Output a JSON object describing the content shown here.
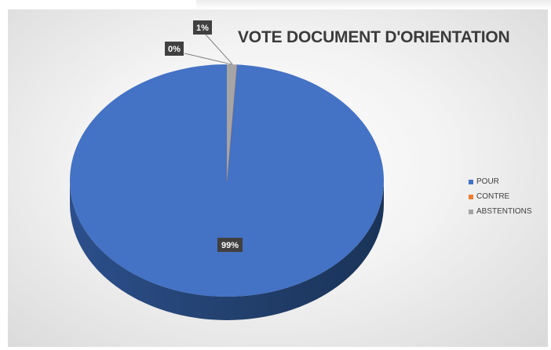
{
  "chart_data": {
    "type": "pie",
    "title": "VOTE DOCUMENT D'ORIENTATION",
    "categories": [
      "POUR",
      "CONTRE",
      "ABSTENTIONS"
    ],
    "values": [
      99,
      0,
      1
    ],
    "data_labels": [
      "99%",
      "0%",
      "1%"
    ],
    "colors": [
      "#4472c4",
      "#ed7d31",
      "#a5a5a5"
    ],
    "legend_position": "right",
    "style": "3d"
  }
}
